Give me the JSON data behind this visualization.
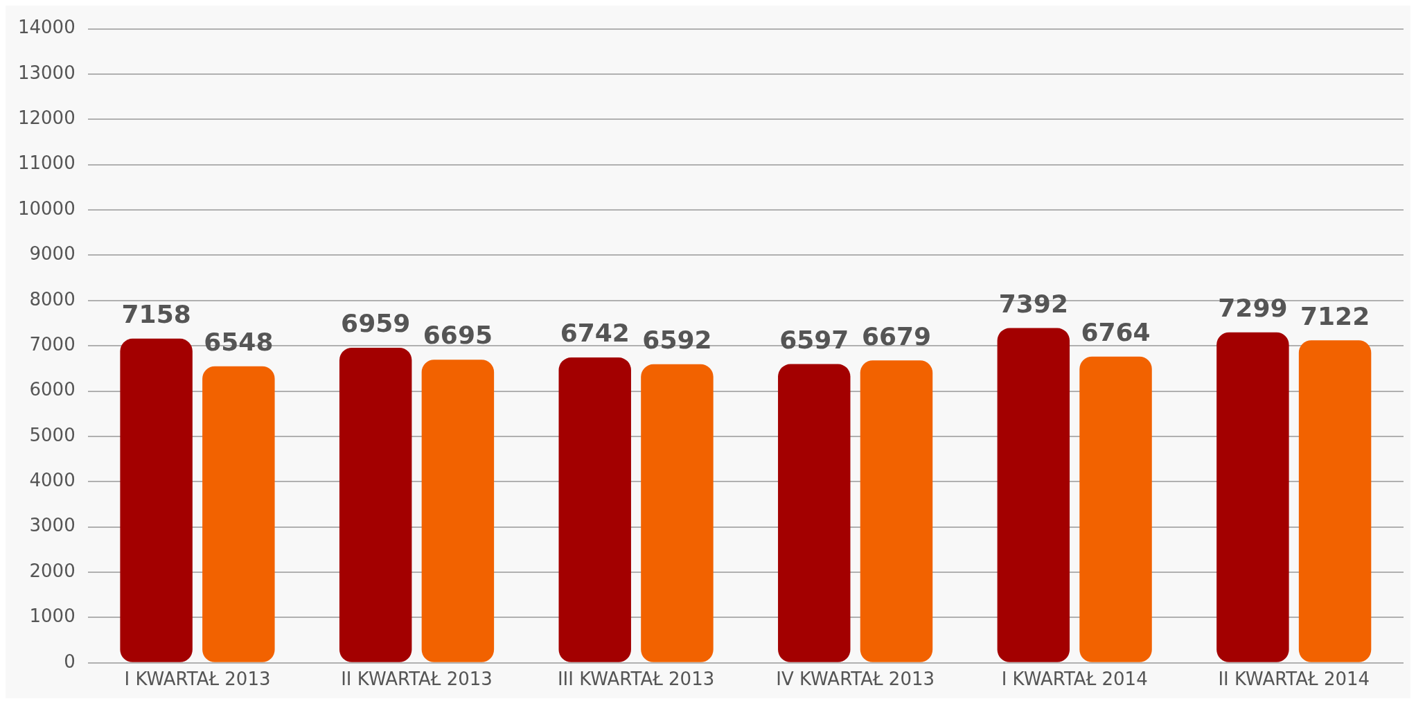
{
  "chart_data": {
    "type": "bar",
    "categories": [
      "I KWARTAŁ 2013",
      "II KWARTAŁ 2013",
      "III KWARTAŁ 2013",
      "IV KWARTAŁ 2013",
      "I KWARTAŁ 2014",
      "II KWARTAŁ 2014"
    ],
    "series": [
      {
        "color": "#a30000",
        "values": [
          7158,
          6959,
          6742,
          6597,
          7392,
          7299
        ]
      },
      {
        "color": "#f26200",
        "values": [
          6548,
          6695,
          6592,
          6679,
          6764,
          7122
        ]
      }
    ],
    "ylim": [
      0,
      14000
    ],
    "yticks": [
      0,
      1000,
      2000,
      3000,
      4000,
      5000,
      6000,
      7000,
      8000,
      9000,
      10000,
      11000,
      12000,
      13000,
      14000
    ],
    "grid": "y",
    "legend": false,
    "data_labels": true
  }
}
